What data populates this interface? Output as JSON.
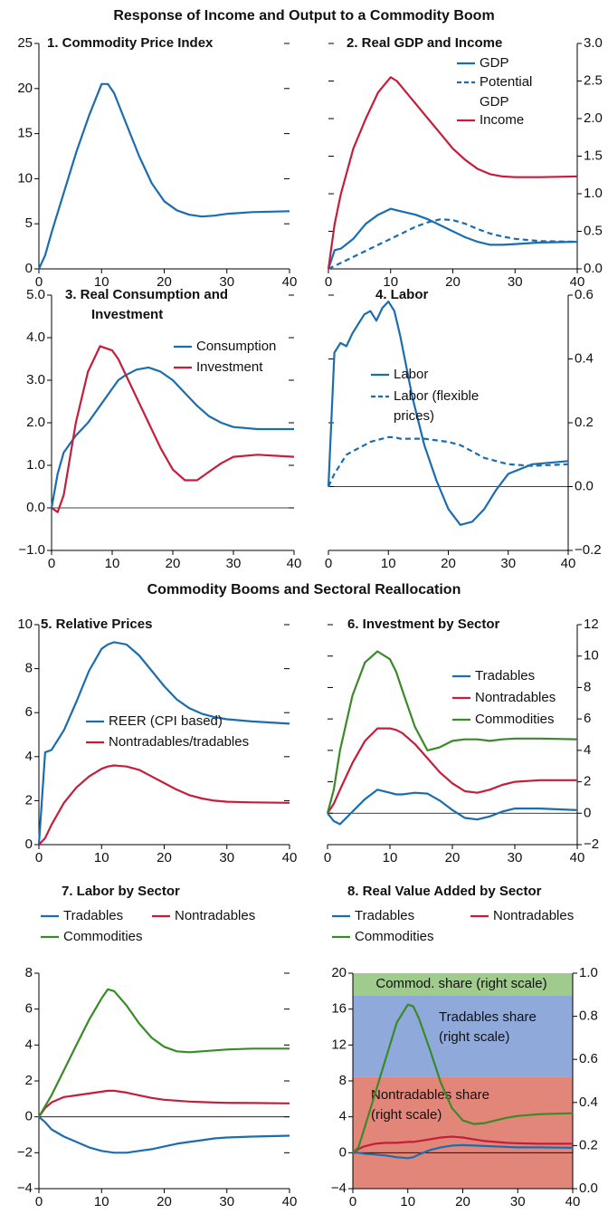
{
  "section_titles": [
    "Response of Income and Output to a Commodity Boom",
    "Commodity Booms and Sectoral Reallocation"
  ],
  "chart_data": [
    {
      "type": "line",
      "title": "1. Commodity Price Index",
      "x": [
        0,
        1,
        2,
        4,
        6,
        8,
        10,
        11,
        12,
        14,
        16,
        18,
        20,
        22,
        24,
        26,
        28,
        30,
        34,
        40
      ],
      "xlim": [
        0,
        40
      ],
      "xticks": [
        0,
        10,
        20,
        30,
        40
      ],
      "ylim": [
        0,
        25
      ],
      "yticks": [
        0,
        5,
        10,
        15,
        20,
        25
      ],
      "series": [
        {
          "name": null,
          "color": "#1b6db0",
          "values": [
            0,
            1.5,
            4,
            8.5,
            13,
            17,
            20.5,
            20.5,
            19.5,
            16,
            12.5,
            9.5,
            7.5,
            6.5,
            6,
            5.8,
            5.9,
            6.1,
            6.3,
            6.4
          ]
        }
      ]
    },
    {
      "type": "line",
      "title": "2. Real GDP and Income",
      "x": [
        0,
        1,
        2,
        4,
        6,
        8,
        10,
        11,
        12,
        14,
        16,
        18,
        20,
        22,
        24,
        26,
        28,
        30,
        34,
        40
      ],
      "xlim": [
        0,
        40
      ],
      "xticks": [
        0,
        10,
        20,
        30,
        40
      ],
      "y2lim": [
        0,
        3
      ],
      "y2ticks": [
        {
          "value": 0,
          "label": "0.0"
        },
        0.5,
        {
          "value": 1,
          "label": "1.0"
        },
        1.5,
        {
          "value": 2,
          "label": "2.0"
        },
        2.5,
        {
          "value": 3,
          "label": "3.0"
        }
      ],
      "series": [
        {
          "name": "GDP",
          "color": "#1b6db0",
          "axis": "y2",
          "values": [
            0,
            0.25,
            0.27,
            0.4,
            0.6,
            0.72,
            0.8,
            0.78,
            0.76,
            0.72,
            0.66,
            0.58,
            0.5,
            0.42,
            0.36,
            0.32,
            0.32,
            0.33,
            0.35,
            0.36
          ]
        },
        {
          "name": "Potential GDP",
          "color": "#1b6db0",
          "axis": "y2",
          "dashed": true,
          "values": [
            0,
            0.04,
            0.08,
            0.16,
            0.24,
            0.32,
            0.4,
            0.44,
            0.48,
            0.56,
            0.62,
            0.66,
            0.65,
            0.6,
            0.53,
            0.47,
            0.43,
            0.4,
            0.37,
            0.36
          ]
        },
        {
          "name": "Income",
          "color": "#c41e3a",
          "axis": "y2",
          "values": [
            0,
            0.6,
            1.0,
            1.6,
            2.0,
            2.35,
            2.55,
            2.5,
            2.4,
            2.2,
            2.0,
            1.8,
            1.6,
            1.45,
            1.33,
            1.26,
            1.23,
            1.22,
            1.22,
            1.23
          ]
        }
      ]
    },
    {
      "type": "line",
      "title": "3. Real Consumption and Investment",
      "x": [
        0,
        1,
        2,
        4,
        6,
        8,
        10,
        11,
        12,
        14,
        16,
        18,
        20,
        22,
        24,
        26,
        28,
        30,
        34,
        40
      ],
      "xlim": [
        0,
        40
      ],
      "xticks": [
        0,
        10,
        20,
        30,
        40
      ],
      "ylim": [
        -1,
        5
      ],
      "zero_line": true,
      "yticks": [
        {
          "value": -1,
          "label": "−1.0"
        },
        {
          "value": 0,
          "label": "0.0"
        },
        {
          "value": 1,
          "label": "1.0"
        },
        {
          "value": 2,
          "label": "2.0"
        },
        {
          "value": 3,
          "label": "3.0"
        },
        {
          "value": 4,
          "label": "4.0"
        },
        {
          "value": 5,
          "label": "5.0"
        }
      ],
      "series": [
        {
          "name": "Consumption",
          "color": "#1b6db0",
          "values": [
            0,
            0.8,
            1.3,
            1.7,
            2.0,
            2.4,
            2.8,
            3.0,
            3.1,
            3.25,
            3.3,
            3.2,
            3.0,
            2.7,
            2.4,
            2.15,
            2.0,
            1.9,
            1.85,
            1.85
          ]
        },
        {
          "name": "Investment",
          "color": "#c41e3a",
          "values": [
            0,
            -0.1,
            0.3,
            2.0,
            3.2,
            3.8,
            3.7,
            3.5,
            3.2,
            2.6,
            2.0,
            1.4,
            0.9,
            0.65,
            0.65,
            0.85,
            1.05,
            1.2,
            1.25,
            1.2
          ]
        }
      ]
    },
    {
      "type": "line",
      "title": "4. Labor",
      "x": [
        0,
        1,
        2,
        3,
        4,
        5,
        6,
        7,
        8,
        9,
        10,
        11,
        12,
        14,
        16,
        18,
        20,
        22,
        24,
        26,
        28,
        30,
        34,
        40
      ],
      "xlim": [
        0,
        40
      ],
      "xticks": [
        0,
        10,
        20,
        30,
        40
      ],
      "y2lim": [
        -0.2,
        0.6
      ],
      "zero_line": true,
      "y2ticks": [
        {
          "value": -0.2,
          "label": "−0.2"
        },
        {
          "value": 0,
          "label": "0.0"
        },
        0.2,
        0.4,
        0.6
      ],
      "series": [
        {
          "name": "Labor",
          "color": "#1b6db0",
          "axis": "y2",
          "values": [
            0,
            0.42,
            0.45,
            0.44,
            0.48,
            0.51,
            0.54,
            0.55,
            0.52,
            0.56,
            0.58,
            0.55,
            0.47,
            0.28,
            0.13,
            0.02,
            -0.07,
            -0.12,
            -0.11,
            -0.07,
            -0.01,
            0.04,
            0.07,
            0.08
          ]
        },
        {
          "name": "Labor (flexible prices)",
          "color": "#1b6db0",
          "axis": "y2",
          "dashed": true,
          "values": [
            0,
            0.04,
            0.07,
            0.1,
            0.11,
            0.12,
            0.13,
            0.14,
            0.145,
            0.15,
            0.155,
            0.155,
            0.15,
            0.15,
            0.15,
            0.145,
            0.14,
            0.13,
            0.11,
            0.09,
            0.08,
            0.07,
            0.065,
            0.07
          ]
        }
      ]
    },
    {
      "type": "line",
      "title": "5. Relative Prices",
      "x": [
        0,
        1,
        2,
        4,
        6,
        8,
        10,
        11,
        12,
        14,
        16,
        18,
        20,
        22,
        24,
        26,
        28,
        30,
        34,
        40
      ],
      "xlim": [
        0,
        40
      ],
      "xticks": [
        0,
        10,
        20,
        30,
        40
      ],
      "ylim": [
        0,
        10
      ],
      "yticks": [
        0,
        2,
        4,
        6,
        8,
        10
      ],
      "series": [
        {
          "name": "REER (CPI based)",
          "color": "#1b6db0",
          "values": [
            0,
            4.2,
            4.3,
            5.2,
            6.5,
            7.9,
            8.9,
            9.1,
            9.2,
            9.1,
            8.6,
            7.9,
            7.2,
            6.6,
            6.2,
            5.95,
            5.8,
            5.7,
            5.6,
            5.5
          ]
        },
        {
          "name": "Nontradables/tradables",
          "color": "#c41e3a",
          "values": [
            0,
            0.3,
            0.9,
            1.9,
            2.6,
            3.1,
            3.45,
            3.55,
            3.6,
            3.55,
            3.4,
            3.1,
            2.8,
            2.5,
            2.25,
            2.1,
            2.0,
            1.95,
            1.92,
            1.9
          ]
        }
      ]
    },
    {
      "type": "line",
      "title": "6. Investment by Sector",
      "x": [
        0,
        1,
        2,
        4,
        6,
        8,
        10,
        11,
        12,
        14,
        16,
        18,
        20,
        22,
        24,
        26,
        28,
        30,
        34,
        40
      ],
      "xlim": [
        0,
        40
      ],
      "xticks": [
        0,
        10,
        20,
        30,
        40
      ],
      "y2lim": [
        -2,
        12
      ],
      "zero_line": true,
      "y2ticks": [
        {
          "value": -2,
          "label": "−2"
        },
        0,
        2,
        4,
        6,
        8,
        10,
        12
      ],
      "series": [
        {
          "name": "Tradables",
          "color": "#1b6db0",
          "axis": "y2",
          "values": [
            0,
            -0.5,
            -0.7,
            0.1,
            0.9,
            1.5,
            1.3,
            1.2,
            1.2,
            1.3,
            1.25,
            0.8,
            0.2,
            -0.3,
            -0.4,
            -0.2,
            0.1,
            0.3,
            0.3,
            0.2
          ]
        },
        {
          "name": "Nontradables",
          "color": "#c41e3a",
          "axis": "y2",
          "values": [
            0,
            0.6,
            1.5,
            3.2,
            4.6,
            5.4,
            5.4,
            5.3,
            5.1,
            4.4,
            3.5,
            2.6,
            1.9,
            1.4,
            1.3,
            1.5,
            1.8,
            2.0,
            2.1,
            2.1
          ]
        },
        {
          "name": "Commodities",
          "color": "#3a8a2a",
          "axis": "y2",
          "values": [
            0,
            1.5,
            4,
            7.5,
            9.6,
            10.3,
            9.8,
            9.0,
            7.8,
            5.5,
            4.0,
            4.2,
            4.6,
            4.7,
            4.7,
            4.6,
            4.7,
            4.75,
            4.75,
            4.7
          ]
        }
      ]
    },
    {
      "type": "line",
      "title": "7. Labor by Sector",
      "x": [
        0,
        1,
        2,
        4,
        6,
        8,
        10,
        11,
        12,
        14,
        16,
        18,
        20,
        22,
        24,
        26,
        28,
        30,
        34,
        40
      ],
      "xlim": [
        0,
        40
      ],
      "xticks": [
        0,
        10,
        20,
        30,
        40
      ],
      "ylim": [
        -4,
        8
      ],
      "zero_line": true,
      "yticks": [
        {
          "value": -4,
          "label": "−4"
        },
        {
          "value": -2,
          "label": "−2"
        },
        0,
        2,
        4,
        6,
        8
      ],
      "series": [
        {
          "name": "Tradables",
          "color": "#1b6db0",
          "values": [
            0,
            -0.3,
            -0.7,
            -1.1,
            -1.4,
            -1.7,
            -1.9,
            -1.95,
            -2.0,
            -2.0,
            -1.9,
            -1.8,
            -1.65,
            -1.5,
            -1.4,
            -1.3,
            -1.2,
            -1.15,
            -1.1,
            -1.05
          ]
        },
        {
          "name": "Nontradables",
          "color": "#c41e3a",
          "values": [
            0,
            0.5,
            0.8,
            1.1,
            1.2,
            1.3,
            1.4,
            1.45,
            1.45,
            1.35,
            1.2,
            1.05,
            0.95,
            0.9,
            0.85,
            0.82,
            0.8,
            0.78,
            0.77,
            0.75
          ]
        },
        {
          "name": "Commodities",
          "color": "#3a8a2a",
          "values": [
            0,
            0.6,
            1.2,
            2.6,
            4.0,
            5.4,
            6.6,
            7.1,
            7.0,
            6.2,
            5.2,
            4.4,
            3.9,
            3.65,
            3.6,
            3.65,
            3.7,
            3.75,
            3.8,
            3.8
          ]
        }
      ]
    },
    {
      "type": "line",
      "title": "8. Real Value Added by Sector",
      "x": [
        0,
        1,
        2,
        4,
        6,
        8,
        10,
        11,
        12,
        14,
        16,
        18,
        20,
        22,
        24,
        26,
        28,
        30,
        34,
        40
      ],
      "xlim": [
        0,
        40
      ],
      "xticks": [
        0,
        10,
        20,
        30,
        40
      ],
      "ylim": [
        -4,
        20
      ],
      "zero_line": true,
      "yticks": [
        {
          "value": -4,
          "label": "−4"
        },
        0,
        4,
        8,
        12,
        16,
        20
      ],
      "y2lim": [
        0,
        1
      ],
      "y2ticks": [
        {
          "value": 0,
          "label": "0.0"
        },
        0.2,
        0.4,
        0.6,
        0.8,
        {
          "value": 1,
          "label": "1.0"
        }
      ],
      "areas": [
        {
          "label": "Nontradables share (right scale)",
          "color": "#e2867a",
          "axis": "y2",
          "values": [
            0.52,
            0.52,
            0.52,
            0.52,
            0.52,
            0.52,
            0.52,
            0.52,
            0.52,
            0.52,
            0.52,
            0.52,
            0.52,
            0.52,
            0.52,
            0.52,
            0.52,
            0.52,
            0.52,
            0.52
          ]
        },
        {
          "label": "Tradables share (right scale)",
          "color": "#8ea9da",
          "axis": "y2",
          "values": [
            0.375,
            0.375,
            0.375,
            0.375,
            0.375,
            0.375,
            0.375,
            0.375,
            0.375,
            0.375,
            0.375,
            0.375,
            0.375,
            0.375,
            0.375,
            0.375,
            0.375,
            0.375,
            0.375,
            0.375
          ]
        },
        {
          "label": "Commod. share (right scale)",
          "color": "#9fcb8c",
          "axis": "y2",
          "values": [
            0.105,
            0.105,
            0.105,
            0.105,
            0.105,
            0.105,
            0.105,
            0.105,
            0.105,
            0.105,
            0.105,
            0.105,
            0.105,
            0.105,
            0.105,
            0.105,
            0.105,
            0.105,
            0.105,
            0.105
          ]
        }
      ],
      "series": [
        {
          "name": "Tradables",
          "color": "#1b6db0",
          "values": [
            0,
            0,
            -0.1,
            -0.2,
            -0.3,
            -0.5,
            -0.6,
            -0.5,
            -0.2,
            0.3,
            0.6,
            0.8,
            0.85,
            0.8,
            0.75,
            0.7,
            0.65,
            0.6,
            0.6,
            0.55
          ]
        },
        {
          "name": "Nontradables",
          "color": "#c41e3a",
          "values": [
            0,
            0.4,
            0.7,
            1.0,
            1.1,
            1.1,
            1.2,
            1.2,
            1.3,
            1.5,
            1.7,
            1.8,
            1.7,
            1.5,
            1.3,
            1.2,
            1.1,
            1.05,
            1.0,
            1.0
          ]
        },
        {
          "name": "Commodities",
          "color": "#3a8a2a",
          "values": [
            0,
            0.6,
            2.5,
            6.5,
            10.5,
            14.5,
            16.5,
            16.3,
            15,
            11.5,
            7.8,
            5.0,
            3.6,
            3.2,
            3.3,
            3.6,
            3.9,
            4.1,
            4.3,
            4.4
          ]
        }
      ]
    }
  ]
}
